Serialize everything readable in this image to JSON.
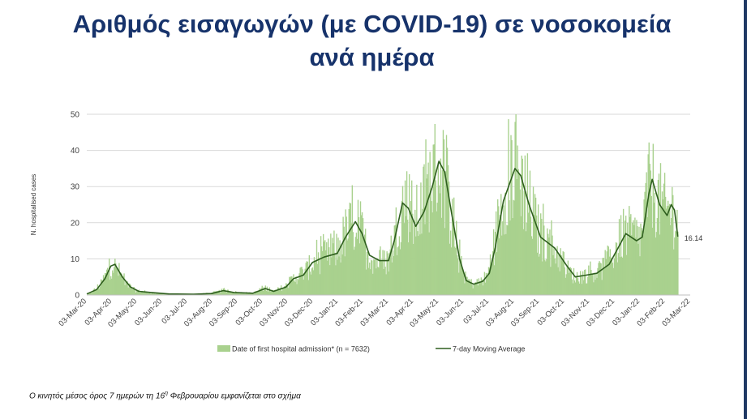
{
  "title_line1": "Αριθμός εισαγωγών (με COVID-19) σε νοσοκομεία",
  "title_line2": "ανά ημέρα",
  "footnote": {
    "pre": "Ο κινητός μέσος όρος 7 ημερών τη 16",
    "sup": "η",
    "post": " Φεβρουαρίου εμφανίζεται στο σχήμα"
  },
  "colors": {
    "title": "#17336b",
    "bar": "#a9d18e",
    "line": "#2e5e1e",
    "grid": "#d9d9d9"
  },
  "chart_data": {
    "type": "bar",
    "ylabel": "N. hospitalised cases",
    "ylim": [
      0,
      50
    ],
    "yticks": [
      0,
      10,
      20,
      30,
      40,
      50
    ],
    "grid": true,
    "legend_position": "bottom",
    "x_range": [
      "2020-03-03",
      "2022-03-03"
    ],
    "x_tick_labels": [
      "03-Mar-20",
      "03-Apr-20",
      "03-May-20",
      "03-Jun-20",
      "03-Jul-20",
      "03-Aug-20",
      "03-Sep-20",
      "03-Oct-20",
      "03-Nov-20",
      "03-Dec-20",
      "03-Jan-21",
      "03-Feb-21",
      "03-Mar-21",
      "03-Apr-21",
      "03-May-21",
      "03-Jun-21",
      "03-Jul-21",
      "03-Aug-21",
      "03-Sep-21",
      "03-Oct-21",
      "03-Nov-21",
      "03-Dec-21",
      "03-Jan-22",
      "03-Feb-22",
      "03-Mar-22"
    ],
    "series": [
      {
        "name": "Date of first hospital admission* (n = 7632)",
        "type": "bar",
        "x_start": "2020-03-03",
        "x_end": "2022-02-16",
        "approx_daily_trend": [
          [
            "2020-03-03",
            0
          ],
          [
            "2020-03-10",
            1
          ],
          [
            "2020-03-20",
            3
          ],
          [
            "2020-03-27",
            6
          ],
          [
            "2020-04-03",
            8.5
          ],
          [
            "2020-04-12",
            6
          ],
          [
            "2020-04-20",
            3
          ],
          [
            "2020-05-01",
            1.2
          ],
          [
            "2020-05-20",
            0.6
          ],
          [
            "2020-06-10",
            0.3
          ],
          [
            "2020-07-10",
            0.2
          ],
          [
            "2020-08-01",
            0.5
          ],
          [
            "2020-08-15",
            1.3
          ],
          [
            "2020-09-01",
            0.7
          ],
          [
            "2020-09-20",
            0.5
          ],
          [
            "2020-10-05",
            2.0
          ],
          [
            "2020-10-15",
            1.0
          ],
          [
            "2020-10-30",
            2.5
          ],
          [
            "2020-11-10",
            5
          ],
          [
            "2020-11-25",
            7
          ],
          [
            "2020-12-05",
            10
          ],
          [
            "2020-12-20",
            11
          ],
          [
            "2020-12-31",
            12.5
          ],
          [
            "2021-01-10",
            17
          ],
          [
            "2021-01-20",
            20
          ],
          [
            "2021-01-27",
            19
          ],
          [
            "2021-02-05",
            12
          ],
          [
            "2021-02-15",
            9.5
          ],
          [
            "2021-02-25",
            9
          ],
          [
            "2021-03-03",
            10
          ],
          [
            "2021-03-10",
            16
          ],
          [
            "2021-03-18",
            24
          ],
          [
            "2021-03-25",
            27
          ],
          [
            "2021-04-03",
            20
          ],
          [
            "2021-04-12",
            24
          ],
          [
            "2021-04-20",
            30
          ],
          [
            "2021-05-01",
            36
          ],
          [
            "2021-05-08",
            34
          ],
          [
            "2021-05-15",
            25
          ],
          [
            "2021-05-25",
            12
          ],
          [
            "2021-06-03",
            5
          ],
          [
            "2021-06-12",
            3
          ],
          [
            "2021-06-20",
            3.5
          ],
          [
            "2021-06-30",
            5
          ],
          [
            "2021-07-08",
            13
          ],
          [
            "2021-07-15",
            22
          ],
          [
            "2021-07-22",
            30
          ],
          [
            "2021-08-01",
            35
          ],
          [
            "2021-08-10",
            33
          ],
          [
            "2021-08-20",
            25
          ],
          [
            "2021-09-01",
            17
          ],
          [
            "2021-09-15",
            14
          ],
          [
            "2021-09-25",
            11
          ],
          [
            "2021-10-05",
            7
          ],
          [
            "2021-10-15",
            5
          ],
          [
            "2021-10-25",
            5.5
          ],
          [
            "2021-11-03",
            6
          ],
          [
            "2021-11-15",
            7
          ],
          [
            "2021-11-25",
            9
          ],
          [
            "2021-12-05",
            14
          ],
          [
            "2021-12-12",
            17
          ],
          [
            "2021-12-20",
            17
          ],
          [
            "2021-12-28",
            16
          ],
          [
            "2022-01-03",
            16
          ],
          [
            "2022-01-10",
            28
          ],
          [
            "2022-01-15",
            31
          ],
          [
            "2022-01-22",
            27
          ],
          [
            "2022-02-01",
            23
          ],
          [
            "2022-02-08",
            24
          ],
          [
            "2022-02-13",
            22
          ],
          [
            "2022-02-16",
            18
          ]
        ]
      },
      {
        "name": "7-day Moving Average",
        "type": "line",
        "points": [
          [
            "2020-03-03",
            0.3
          ],
          [
            "2020-03-15",
            1.5
          ],
          [
            "2020-03-25",
            4.5
          ],
          [
            "2020-04-01",
            8
          ],
          [
            "2020-04-06",
            8.5
          ],
          [
            "2020-04-15",
            5
          ],
          [
            "2020-04-25",
            2.2
          ],
          [
            "2020-05-05",
            1.0
          ],
          [
            "2020-05-20",
            0.7
          ],
          [
            "2020-06-10",
            0.3
          ],
          [
            "2020-07-10",
            0.2
          ],
          [
            "2020-08-01",
            0.4
          ],
          [
            "2020-08-15",
            1.2
          ],
          [
            "2020-08-28",
            0.7
          ],
          [
            "2020-09-20",
            0.5
          ],
          [
            "2020-10-05",
            1.8
          ],
          [
            "2020-10-15",
            1.0
          ],
          [
            "2020-10-30",
            2.2
          ],
          [
            "2020-11-08",
            4.5
          ],
          [
            "2020-11-20",
            5.5
          ],
          [
            "2020-12-01",
            9
          ],
          [
            "2020-12-15",
            10.5
          ],
          [
            "2020-12-31",
            11.5
          ],
          [
            "2021-01-10",
            16
          ],
          [
            "2021-01-22",
            20.3
          ],
          [
            "2021-01-30",
            17
          ],
          [
            "2021-02-08",
            11
          ],
          [
            "2021-02-20",
            9.5
          ],
          [
            "2021-03-03",
            9.5
          ],
          [
            "2021-03-10",
            15
          ],
          [
            "2021-03-20",
            25.5
          ],
          [
            "2021-03-27",
            24
          ],
          [
            "2021-04-05",
            19
          ],
          [
            "2021-04-15",
            23
          ],
          [
            "2021-04-25",
            30
          ],
          [
            "2021-05-03",
            37
          ],
          [
            "2021-05-10",
            34
          ],
          [
            "2021-05-18",
            23
          ],
          [
            "2021-05-28",
            10
          ],
          [
            "2021-06-05",
            4
          ],
          [
            "2021-06-14",
            3
          ],
          [
            "2021-06-25",
            3.8
          ],
          [
            "2021-07-03",
            6
          ],
          [
            "2021-07-10",
            13
          ],
          [
            "2021-07-20",
            26
          ],
          [
            "2021-08-03",
            35
          ],
          [
            "2021-08-10",
            33
          ],
          [
            "2021-08-20",
            25
          ],
          [
            "2021-09-03",
            16
          ],
          [
            "2021-09-20",
            13
          ],
          [
            "2021-10-05",
            8
          ],
          [
            "2021-10-15",
            5
          ],
          [
            "2021-10-28",
            5.5
          ],
          [
            "2021-11-10",
            6
          ],
          [
            "2021-11-25",
            8.5
          ],
          [
            "2021-12-08",
            14
          ],
          [
            "2021-12-15",
            17
          ],
          [
            "2021-12-28",
            15
          ],
          [
            "2022-01-04",
            16
          ],
          [
            "2022-01-12",
            28
          ],
          [
            "2022-01-16",
            32
          ],
          [
            "2022-01-25",
            25
          ],
          [
            "2022-02-03",
            22
          ],
          [
            "2022-02-08",
            25
          ],
          [
            "2022-02-12",
            23.5
          ],
          [
            "2022-02-16",
            16.14
          ]
        ]
      }
    ],
    "annotation": "16.14"
  }
}
